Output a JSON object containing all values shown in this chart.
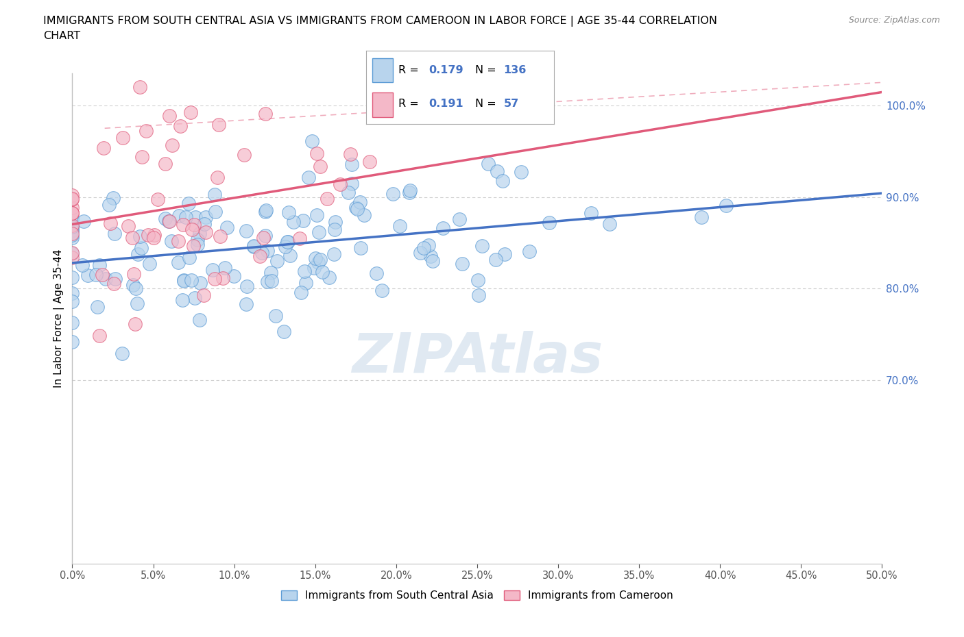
{
  "title_line1": "IMMIGRANTS FROM SOUTH CENTRAL ASIA VS IMMIGRANTS FROM CAMEROON IN LABOR FORCE | AGE 35-44 CORRELATION",
  "title_line2": "CHART",
  "source": "Source: ZipAtlas.com",
  "ylabel": "In Labor Force | Age 35-44",
  "r_blue": 0.179,
  "n_blue": 136,
  "r_pink": 0.191,
  "n_pink": 57,
  "blue_fill": "#b8d4ed",
  "blue_edge": "#5b9bd5",
  "blue_line": "#4472c4",
  "pink_fill": "#f4b8c8",
  "pink_edge": "#e05a7a",
  "pink_line": "#e05a7a",
  "legend_label_blue": "Immigrants from South Central Asia",
  "legend_label_pink": "Immigrants from Cameroon",
  "x_min": 0.0,
  "x_max": 0.5,
  "y_min": 0.5,
  "y_max": 1.035,
  "right_yticks": [
    0.7,
    0.8,
    0.9,
    1.0
  ],
  "right_yticklabels": [
    "70.0%",
    "80.0%",
    "90.0%",
    "100.0%"
  ],
  "watermark": "ZIPAtlas",
  "seed_blue": 12,
  "seed_pink": 7
}
